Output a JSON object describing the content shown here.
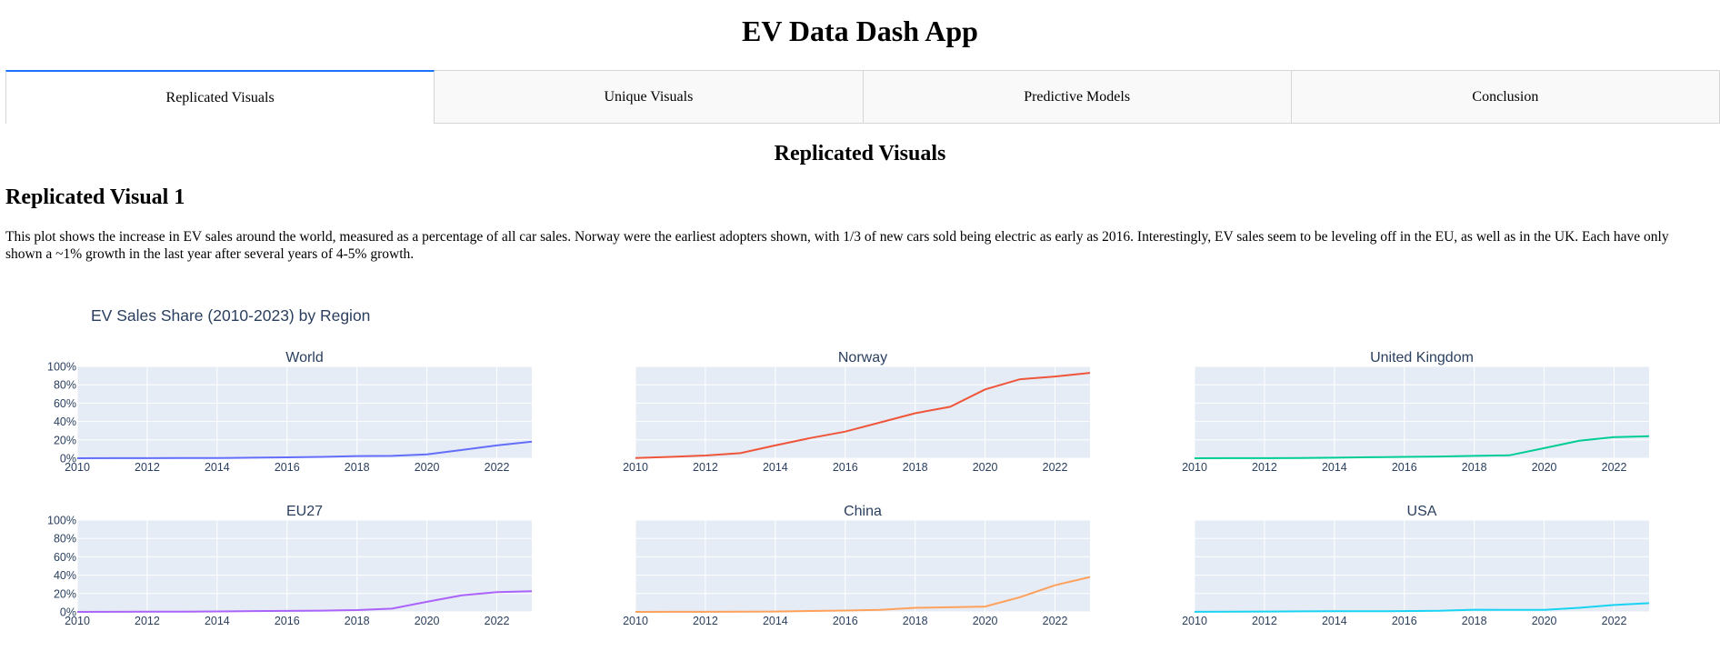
{
  "app": {
    "title": "EV Data Dash App"
  },
  "tabs": [
    {
      "label": "Replicated Visuals",
      "active": true
    },
    {
      "label": "Unique Visuals",
      "active": false
    },
    {
      "label": "Predictive Models",
      "active": false
    },
    {
      "label": "Conclusion",
      "active": false
    }
  ],
  "accent_color": "#1975fa",
  "content": {
    "section_title": "Replicated Visuals",
    "visual_title": "Replicated Visual 1",
    "description": "This plot shows the increase in EV sales around the world, measured as a percentage of all car sales. Norway were the earliest adopters shown, with 1/3 of new cars sold being electric as early as 2016. Interestingly, EV sales seem to be leveling off in the EU, as well as in the UK. Each have only shown a ~1% growth in the last year after several years of 4-5% growth."
  },
  "chart_data": {
    "type": "line",
    "title": "EV Sales Share (2010-2023) by Region",
    "x_ticks": [
      "2010",
      "2012",
      "2014",
      "2016",
      "2018",
      "2020",
      "2022"
    ],
    "y_ticks": [
      "0%",
      "20%",
      "40%",
      "60%",
      "80%",
      "100%"
    ],
    "xlim": [
      2010,
      2023
    ],
    "ylim": [
      0,
      100
    ],
    "grid": true,
    "x": [
      2010,
      2011,
      2012,
      2013,
      2014,
      2015,
      2016,
      2017,
      2018,
      2019,
      2020,
      2021,
      2022,
      2023
    ],
    "series": [
      {
        "name": "World",
        "color": "#636efa",
        "values": [
          0.01,
          0.05,
          0.1,
          0.2,
          0.3,
          0.6,
          1,
          1.5,
          2.4,
          2.6,
          4.2,
          9,
          14,
          18
        ]
      },
      {
        "name": "Norway",
        "color": "#ef553b",
        "values": [
          0.3,
          1.5,
          3,
          5.5,
          14,
          22,
          29,
          39,
          49,
          56,
          75,
          86,
          89,
          93
        ]
      },
      {
        "name": "United Kingdom",
        "color": "#00cc96",
        "values": [
          0.01,
          0.1,
          0.1,
          0.2,
          0.6,
          1.1,
          1.5,
          1.9,
          2.6,
          3.2,
          11,
          19,
          23,
          24
        ]
      },
      {
        "name": "EU27",
        "color": "#ab63fa",
        "values": [
          0.01,
          0.05,
          0.2,
          0.3,
          0.5,
          0.9,
          1.1,
          1.4,
          2,
          3.6,
          11,
          18,
          21.5,
          22.5
        ]
      },
      {
        "name": "China",
        "color": "#ffa15a",
        "values": [
          0.01,
          0.05,
          0.1,
          0.2,
          0.4,
          1,
          1.5,
          2.2,
          4.5,
          5,
          5.8,
          16,
          29,
          38
        ]
      },
      {
        "name": "USA",
        "color": "#19d3f3",
        "values": [
          0.1,
          0.2,
          0.4,
          0.6,
          0.8,
          0.7,
          0.9,
          1.2,
          2.4,
          2.2,
          2.2,
          4.5,
          7.5,
          9.5
        ]
      }
    ]
  }
}
